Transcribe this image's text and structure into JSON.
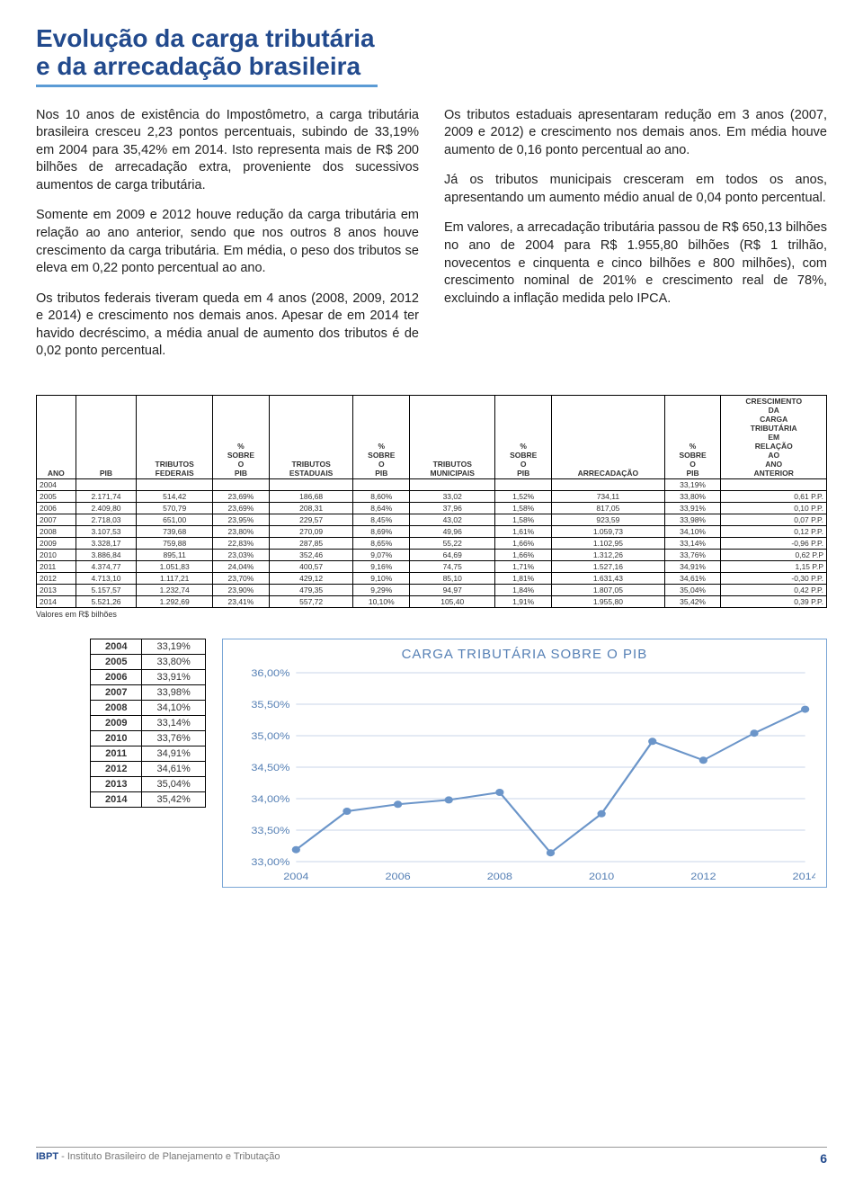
{
  "title_line1": "Evolução da carga tributária",
  "title_line2": "e da arrecadação brasileira",
  "left_paras": [
    "Nos 10 anos de existência do Impostômetro, a carga tributária brasileira cresceu 2,23 pontos percentuais, subindo de 33,19% em 2004 para 35,42% em 2014. Isto representa mais de R$ 200 bilhões de arrecadação extra, proveniente dos sucessivos aumentos de carga tributária.",
    "Somente em 2009 e 2012 houve redução da carga tributária em relação ao ano anterior, sendo que nos outros 8 anos houve crescimento da carga tributária. Em média, o peso dos tributos se eleva em 0,22 ponto percentual ao ano.",
    "Os tributos federais tiveram queda em 4 anos (2008, 2009, 2012 e 2014) e crescimento nos demais anos. Apesar de em 2014 ter havido decréscimo, a média anual de aumento dos tributos é de 0,02 ponto percentual."
  ],
  "right_paras": [
    "Os tributos estaduais apresentaram redução em 3 anos (2007, 2009 e 2012) e crescimento nos demais anos. Em média houve aumento de 0,16 ponto percentual ao ano.",
    "Já os tributos municipais cresceram em todos os anos, apresentando um aumento médio anual de 0,04 ponto percentual.",
    "Em valores, a arrecadação tributária passou de R$ 650,13 bilhões no ano de 2004 para R$ 1.955,80 bilhões (R$ 1 trilhão, novecentos e cinquenta e cinco bilhões e 800 milhões), com crescimento nominal de 201% e crescimento real de 78%, excluindo a inflação medida pelo IPCA."
  ],
  "table": {
    "headers": [
      "ANO",
      "PIB",
      "TRIBUTOS FEDERAIS",
      "% SOBRE O PIB",
      "TRIBUTOS ESTADUAIS",
      "% SOBRE O PIB",
      "TRIBUTOS MUNICIPAIS",
      "% SOBRE O PIB",
      "ARRECADAÇÃO",
      "% SOBRE O PIB",
      "CRESCIMENTO DA CARGA TRIBUTÁRIA EM RELAÇÃO AO ANO ANTERIOR"
    ],
    "rows": [
      [
        "2004",
        "",
        "",
        "",
        "",
        "",
        "",
        "",
        "",
        "33,19%",
        ""
      ],
      [
        "2005",
        "2.171,74",
        "514,42",
        "23,69%",
        "186,68",
        "8,60%",
        "33,02",
        "1,52%",
        "734,11",
        "33,80%",
        "0,61 P.P."
      ],
      [
        "2006",
        "2.409,80",
        "570,79",
        "23,69%",
        "208,31",
        "8,64%",
        "37,96",
        "1,58%",
        "817,05",
        "33,91%",
        "0,10 P.P."
      ],
      [
        "2007",
        "2.718,03",
        "651,00",
        "23,95%",
        "229,57",
        "8,45%",
        "43,02",
        "1,58%",
        "923,59",
        "33,98%",
        "0,07 P.P."
      ],
      [
        "2008",
        "3.107,53",
        "739,68",
        "23,80%",
        "270,09",
        "8,69%",
        "49,96",
        "1,61%",
        "1.059,73",
        "34,10%",
        "0,12 P.P."
      ],
      [
        "2009",
        "3.328,17",
        "759,88",
        "22,83%",
        "287,85",
        "8,65%",
        "55,22",
        "1,66%",
        "1.102,95",
        "33,14%",
        "-0,96 P.P."
      ],
      [
        "2010",
        "3.886,84",
        "895,11",
        "23,03%",
        "352,46",
        "9,07%",
        "64,69",
        "1,66%",
        "1.312,26",
        "33,76%",
        "0,62 P.P"
      ],
      [
        "2011",
        "4.374,77",
        "1.051,83",
        "24,04%",
        "400,57",
        "9,16%",
        "74,75",
        "1,71%",
        "1.527,16",
        "34,91%",
        "1,15 P.P"
      ],
      [
        "2012",
        "4.713,10",
        "1.117,21",
        "23,70%",
        "429,12",
        "9,10%",
        "85,10",
        "1,81%",
        "1.631,43",
        "34,61%",
        "-0,30 P.P."
      ],
      [
        "2013",
        "5.157,57",
        "1.232,74",
        "23,90%",
        "479,35",
        "9,29%",
        "94,97",
        "1,84%",
        "1.807,05",
        "35,04%",
        "0,42 P.P."
      ],
      [
        "2014",
        "5.521,26",
        "1.292,69",
        "23,41%",
        "557,72",
        "10,10%",
        "105,40",
        "1,91%",
        "1.955,80",
        "35,42%",
        "0,39 P.P."
      ]
    ],
    "note": "Valores em R$ bilhões"
  },
  "small_table": [
    [
      "2004",
      "33,19%"
    ],
    [
      "2005",
      "33,80%"
    ],
    [
      "2006",
      "33,91%"
    ],
    [
      "2007",
      "33,98%"
    ],
    [
      "2008",
      "34,10%"
    ],
    [
      "2009",
      "33,14%"
    ],
    [
      "2010",
      "33,76%"
    ],
    [
      "2011",
      "34,91%"
    ],
    [
      "2012",
      "34,61%"
    ],
    [
      "2013",
      "35,04%"
    ],
    [
      "2014",
      "35,42%"
    ]
  ],
  "chart": {
    "title": "CARGA TRIBUTÁRIA SOBRE O PIB",
    "type": "line",
    "x": [
      2004,
      2005,
      2006,
      2007,
      2008,
      2009,
      2010,
      2011,
      2012,
      2013,
      2014
    ],
    "y": [
      33.19,
      33.8,
      33.91,
      33.98,
      34.1,
      33.14,
      33.76,
      34.91,
      34.61,
      35.04,
      35.42
    ],
    "ylim": [
      33.0,
      36.0
    ],
    "yticks": [
      33.0,
      33.5,
      34.0,
      34.5,
      35.0,
      35.5,
      36.0
    ],
    "ytick_labels": [
      "33,00%",
      "33,50%",
      "34,00%",
      "34,50%",
      "35,00%",
      "35,50%",
      "36,00%"
    ],
    "xticks": [
      2004,
      2006,
      2008,
      2010,
      2012,
      2014
    ],
    "line_color": "#6b95c9",
    "marker_color": "#6b95c9",
    "marker_radius": 4,
    "line_width": 2,
    "grid_color": "#c9d6e9",
    "axis_text_color": "#5680b5",
    "axis_fontsize": 11,
    "background": "#ffffff"
  },
  "footer": {
    "org_bold": "IBPT",
    "org_rest": " - Instituto Brasileiro de Planejamento e Tributação",
    "page": "6"
  }
}
